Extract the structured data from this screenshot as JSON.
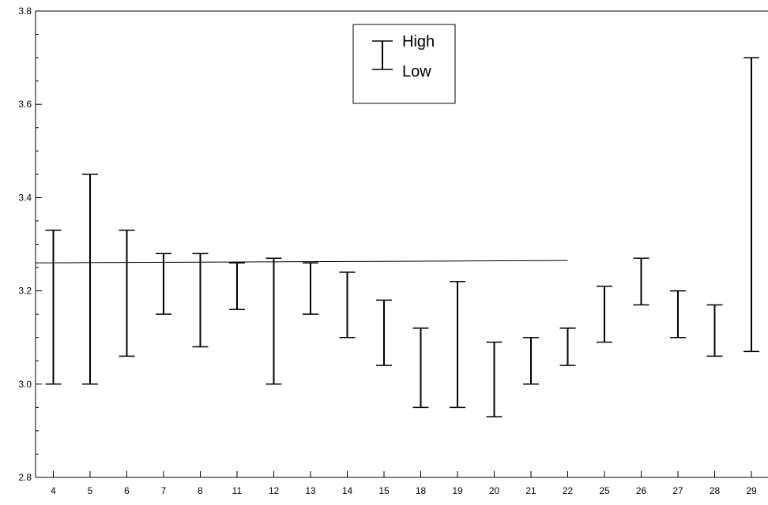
{
  "chart_data": {
    "type": "hilo",
    "categories": [
      "4",
      "5",
      "6",
      "7",
      "8",
      "11",
      "12",
      "13",
      "14",
      "15",
      "18",
      "19",
      "20",
      "21",
      "22",
      "25",
      "26",
      "27",
      "28",
      "29"
    ],
    "series": [
      {
        "name": "High",
        "values": [
          3.33,
          3.45,
          3.33,
          3.28,
          3.28,
          3.26,
          3.27,
          3.26,
          3.24,
          3.18,
          3.12,
          3.22,
          3.09,
          3.1,
          3.12,
          3.21,
          3.27,
          3.2,
          3.17,
          3.7
        ]
      },
      {
        "name": "Low",
        "values": [
          3.0,
          3.0,
          3.06,
          3.15,
          3.08,
          3.16,
          3.0,
          3.15,
          3.1,
          3.04,
          2.95,
          2.95,
          2.93,
          3.0,
          3.04,
          3.09,
          3.17,
          3.1,
          3.06,
          3.07
        ]
      }
    ],
    "reference_line": {
      "y_start": 3.26,
      "y_end": 3.265,
      "x_start": "4",
      "x_end": "22"
    },
    "ylim": [
      2.8,
      3.8
    ],
    "yticks": [
      "2.8",
      "3.0",
      "3.2",
      "3.4",
      "3.6",
      "3.8"
    ],
    "yticks_minor_step": 0.05,
    "title": "",
    "xlabel": "",
    "ylabel": "",
    "legend": {
      "position": "top-center",
      "entries": [
        "High",
        "Low"
      ]
    },
    "grid": false,
    "colors": {
      "mark": "#000000",
      "axis": "#000000",
      "background": "#ffffff"
    }
  }
}
